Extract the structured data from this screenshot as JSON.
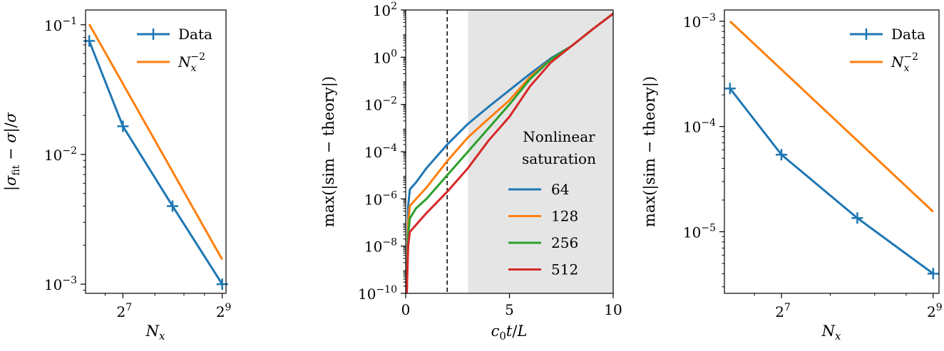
{
  "chart_data": [
    {
      "type": "line",
      "xscale": "log2",
      "yscale": "log10",
      "xlim": [
        76,
        540
      ],
      "ylim": [
        0.00085,
        0.13
      ],
      "xlabel": "N_x",
      "ylabel": "|σ_fit − σ|/σ",
      "xticks": [
        {
          "value": 128,
          "base": "2",
          "exp": "7"
        },
        {
          "value": 512,
          "base": "2",
          "exp": "9"
        }
      ],
      "yticks": [
        {
          "value": 0.1,
          "base": "10",
          "exp": "−1"
        },
        {
          "value": 0.01,
          "base": "10",
          "exp": "−2"
        },
        {
          "value": 0.001,
          "base": "10",
          "exp": "−3"
        }
      ],
      "legend_position": "top-right",
      "series": [
        {
          "name": "Data",
          "color": "#1f77b4",
          "marker": "plus",
          "x": [
            80,
            128,
            256,
            512
          ],
          "y": [
            0.075,
            0.0165,
            0.004,
            0.001
          ]
        },
        {
          "name": "N_x^−2",
          "color": "#ff7f0e",
          "marker": "none",
          "x": [
            80,
            512
          ],
          "y": [
            0.101,
            0.00155
          ]
        }
      ]
    },
    {
      "type": "line",
      "xscale": "linear",
      "yscale": "log10",
      "xlim": [
        0,
        10
      ],
      "ylim": [
        1e-10,
        100
      ],
      "xlabel": "c_0 t/L",
      "ylabel": "max(|sim − theory|)",
      "xticks": [
        {
          "value": 0,
          "label": "0"
        },
        {
          "value": 5,
          "label": "5"
        },
        {
          "value": 10,
          "label": "10"
        }
      ],
      "yticks": [
        {
          "value": 100,
          "base": "10",
          "exp": "2"
        },
        {
          "value": 1,
          "base": "10",
          "exp": "0"
        },
        {
          "value": 0.01,
          "base": "10",
          "exp": "−2"
        },
        {
          "value": 0.0001,
          "base": "10",
          "exp": "−4"
        },
        {
          "value": 1e-06,
          "base": "10",
          "exp": "−6"
        },
        {
          "value": 1e-08,
          "base": "10",
          "exp": "−8"
        },
        {
          "value": 1e-10,
          "base": "10",
          "exp": "−10"
        }
      ],
      "vline": 2,
      "shaded_region": [
        3,
        10
      ],
      "legend_title": [
        "Nonlinear",
        "saturation"
      ],
      "legend_position": "center-right",
      "series": [
        {
          "name": "64",
          "color": "#1f77b4",
          "x": [
            0.05,
            0.12,
            0.2,
            0.5,
            1,
            2,
            3,
            4,
            5,
            6,
            7,
            8,
            9,
            10
          ],
          "y": [
            1e-10,
            5e-07,
            2.5e-06,
            5e-06,
            2e-05,
            0.0002,
            0.0015,
            0.008,
            0.04,
            0.2,
            0.9,
            3,
            15,
            70
          ]
        },
        {
          "name": "128",
          "color": "#ff7f0e",
          "x": [
            0.05,
            0.12,
            0.2,
            0.5,
            1,
            2,
            3,
            4,
            5,
            6,
            7,
            8,
            9,
            10
          ],
          "y": [
            1e-10,
            1e-07,
            5e-07,
            1e-06,
            3e-06,
            4e-05,
            0.0004,
            0.0025,
            0.015,
            0.15,
            0.8,
            3,
            15,
            70
          ]
        },
        {
          "name": "256",
          "color": "#2ca02c",
          "x": [
            0.05,
            0.12,
            0.2,
            0.5,
            1,
            2,
            3,
            4,
            5,
            6,
            7,
            8,
            9,
            10
          ],
          "y": [
            1e-10,
            3e-08,
            1.5e-07,
            4e-07,
            1e-06,
            1e-05,
            0.0001,
            0.001,
            0.01,
            0.12,
            0.8,
            3,
            15,
            70
          ]
        },
        {
          "name": "512",
          "color": "#d62728",
          "x": [
            0.05,
            0.12,
            0.2,
            0.5,
            1,
            2,
            3,
            4,
            5,
            6,
            7,
            8,
            9,
            10
          ],
          "y": [
            1e-10,
            1e-08,
            4e-08,
            8e-08,
            2.5e-07,
            2e-06,
            2e-05,
            0.0003,
            0.003,
            0.06,
            0.6,
            3,
            15,
            70
          ]
        }
      ]
    },
    {
      "type": "line",
      "xscale": "log2",
      "yscale": "log10",
      "xlim": [
        76,
        540
      ],
      "ylim": [
        2.6e-06,
        0.00128
      ],
      "xlabel": "N_x",
      "ylabel": "max(|sim − theory|)",
      "xticks": [
        {
          "value": 128,
          "base": "2",
          "exp": "7"
        },
        {
          "value": 512,
          "base": "2",
          "exp": "9"
        }
      ],
      "yticks": [
        {
          "value": 0.001,
          "base": "10",
          "exp": "−3"
        },
        {
          "value": 0.0001,
          "base": "10",
          "exp": "−4"
        },
        {
          "value": 1e-05,
          "base": "10",
          "exp": "−5"
        }
      ],
      "legend_position": "top-right",
      "series": [
        {
          "name": "Data",
          "color": "#1f77b4",
          "marker": "plus",
          "x": [
            80,
            128,
            256,
            512
          ],
          "y": [
            0.00023,
            5.4e-05,
            1.35e-05,
            4e-06
          ]
        },
        {
          "name": "N_x^−2",
          "color": "#ff7f0e",
          "marker": "none",
          "x": [
            80,
            512
          ],
          "y": [
            0.001,
            1.55e-05
          ]
        }
      ]
    }
  ]
}
